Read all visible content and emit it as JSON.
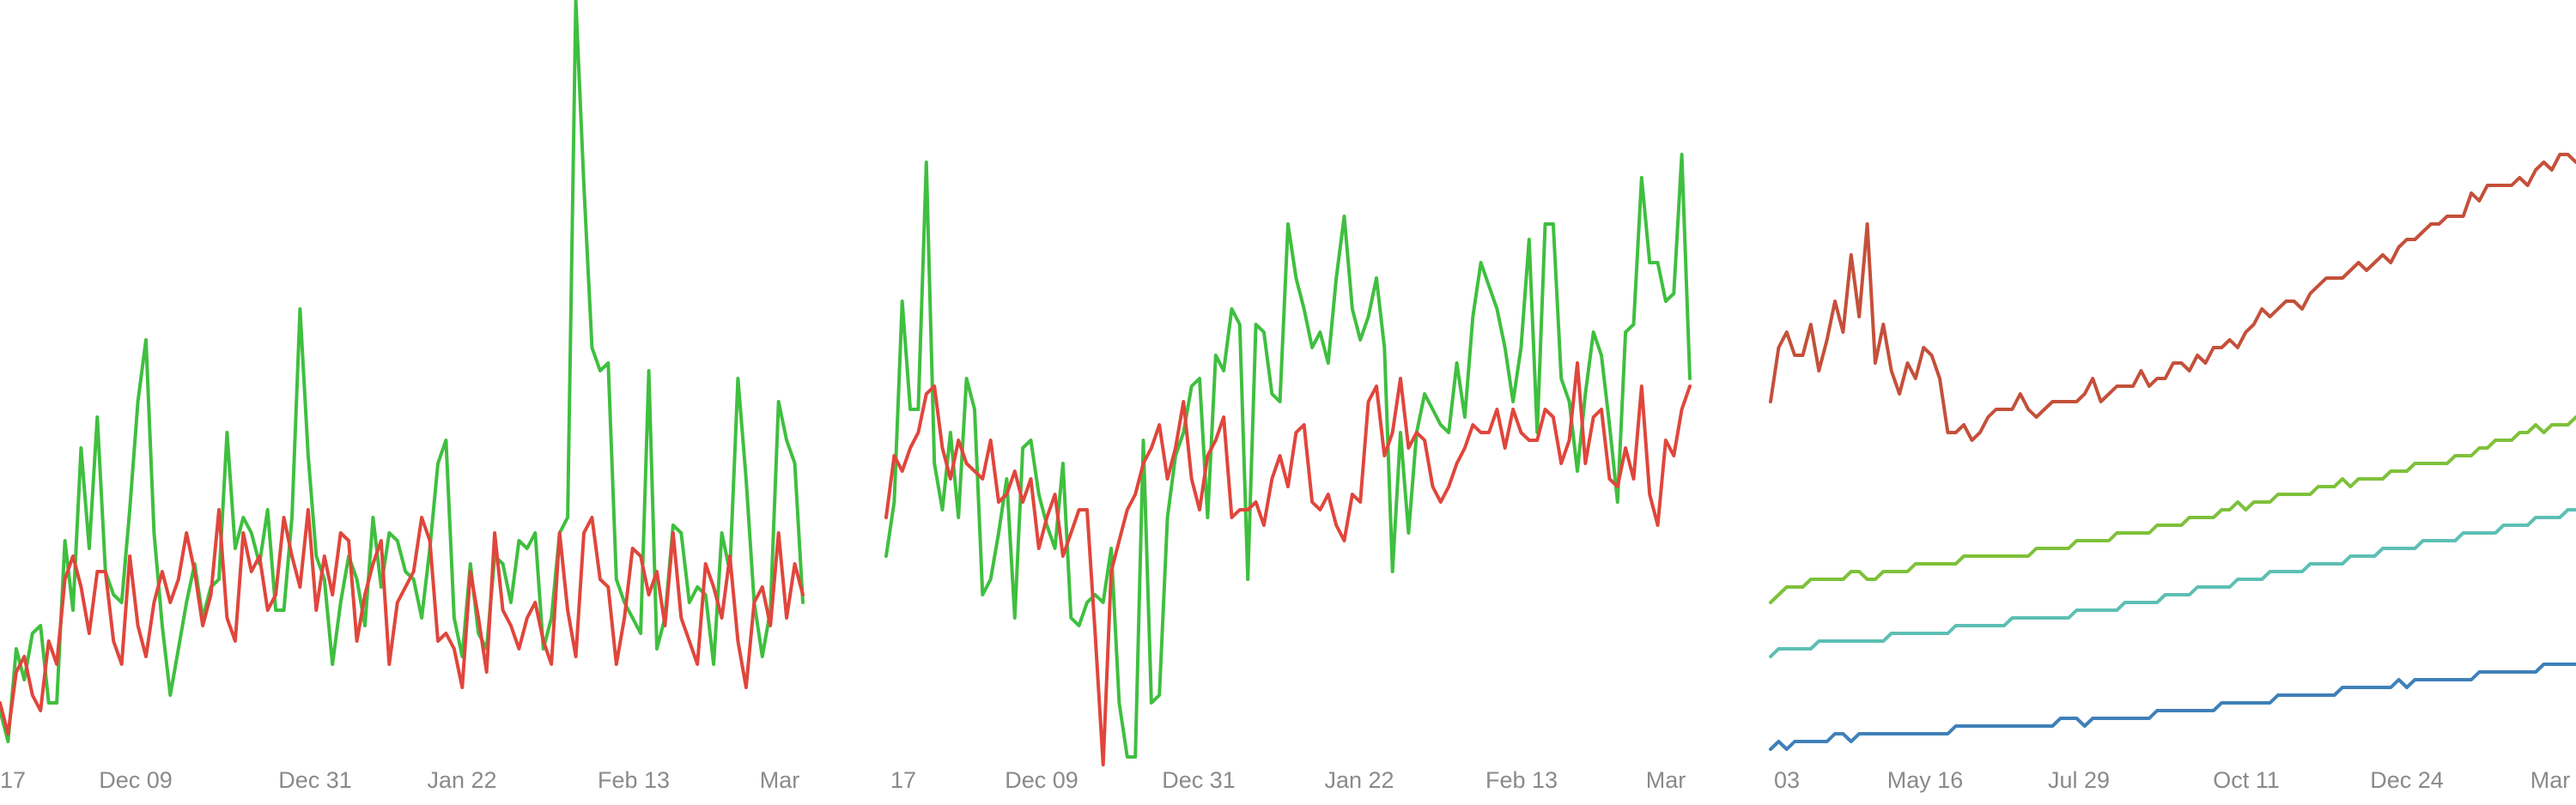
{
  "chart_data": [
    {
      "type": "line",
      "x_tick_labels": [
        "17",
        "Dec 09",
        "Dec 31",
        "Jan 22",
        "Feb 13",
        "Mar"
      ],
      "ylim": [
        0,
        100
      ],
      "grid": false,
      "legend": "none",
      "series": [
        {
          "color": "#3fbf3f",
          "values": [
            8,
            4,
            16,
            12,
            18,
            19,
            9,
            9,
            30,
            21,
            42,
            29,
            46,
            26,
            23,
            22,
            34,
            48,
            56,
            31,
            19,
            10,
            16,
            22,
            27,
            20,
            24,
            25,
            44,
            29,
            33,
            31,
            27,
            34,
            21,
            21,
            33,
            60,
            41,
            28,
            25,
            14,
            22,
            28,
            25,
            19,
            33,
            24,
            31,
            30,
            26,
            25,
            20,
            29,
            40,
            43,
            20,
            15,
            27,
            18,
            16,
            28,
            27,
            22,
            30,
            29,
            31,
            16,
            20,
            31,
            33,
            100,
            76,
            55,
            52,
            53,
            25,
            22,
            20,
            18,
            52,
            16,
            20,
            32,
            31,
            22,
            24,
            23,
            14,
            31,
            26,
            51,
            38,
            22,
            15,
            21,
            48,
            43,
            40,
            22
          ]
        },
        {
          "color": "#e0463c",
          "values": [
            9,
            5,
            13,
            15,
            10,
            8,
            17,
            14,
            25,
            28,
            24,
            18,
            26,
            26,
            17,
            14,
            28,
            19,
            15,
            22,
            26,
            22,
            25,
            31,
            26,
            19,
            23,
            34,
            20,
            17,
            31,
            26,
            28,
            21,
            23,
            33,
            28,
            24,
            34,
            21,
            28,
            23,
            31,
            30,
            17,
            23,
            27,
            30,
            14,
            22,
            24,
            26,
            33,
            30,
            17,
            18,
            16,
            11,
            26,
            20,
            13,
            31,
            21,
            19,
            16,
            20,
            22,
            17,
            14,
            31,
            21,
            15,
            31,
            33,
            25,
            24,
            14,
            20,
            29,
            28,
            23,
            26,
            19,
            31,
            20,
            17,
            14,
            27,
            24,
            20,
            28,
            17,
            11,
            22,
            24,
            19,
            31,
            20,
            27,
            23
          ]
        }
      ]
    },
    {
      "type": "line",
      "x_tick_labels": [
        "17",
        "Dec 09",
        "Dec 31",
        "Jan 22",
        "Feb 13",
        "Mar"
      ],
      "ylim": [
        0,
        100
      ],
      "grid": false,
      "legend": "none",
      "series": [
        {
          "color": "#3fbf3f",
          "values": [
            28,
            35,
            61,
            47,
            47,
            79,
            40,
            34,
            44,
            33,
            51,
            47,
            23,
            25,
            31,
            38,
            20,
            42,
            43,
            36,
            32,
            29,
            40,
            20,
            19,
            22,
            23,
            22,
            29,
            9,
            2,
            2,
            43,
            9,
            10,
            33,
            41,
            44,
            50,
            51,
            33,
            54,
            52,
            60,
            58,
            25,
            58,
            57,
            49,
            48,
            71,
            64,
            60,
            55,
            57,
            53,
            64,
            72,
            60,
            56,
            59,
            64,
            55,
            26,
            44,
            31,
            44,
            49,
            47,
            45,
            44,
            53,
            46,
            59,
            66,
            63,
            60,
            55,
            48,
            55,
            69,
            44,
            71,
            71,
            51,
            48,
            39,
            49,
            57,
            54,
            45,
            35,
            57,
            58,
            77,
            66,
            66,
            61,
            62,
            80,
            51
          ]
        },
        {
          "color": "#e0463c",
          "values": [
            33,
            41,
            39,
            42,
            44,
            49,
            50,
            42,
            38,
            43,
            40,
            39,
            38,
            43,
            35,
            36,
            39,
            35,
            38,
            29,
            33,
            36,
            28,
            31,
            34,
            34,
            18,
            1,
            26,
            30,
            34,
            36,
            40,
            42,
            45,
            38,
            42,
            48,
            38,
            34,
            41,
            43,
            46,
            33,
            34,
            34,
            35,
            32,
            38,
            41,
            37,
            44,
            45,
            35,
            34,
            36,
            32,
            30,
            36,
            35,
            48,
            50,
            41,
            44,
            51,
            42,
            44,
            43,
            37,
            35,
            37,
            40,
            42,
            45,
            44,
            44,
            47,
            42,
            47,
            44,
            43,
            43,
            47,
            46,
            40,
            43,
            53,
            40,
            46,
            47,
            38,
            37,
            42,
            38,
            50,
            36,
            32,
            43,
            41,
            47,
            50
          ]
        }
      ]
    },
    {
      "type": "line",
      "x_tick_labels": [
        "03",
        "May 16",
        "Jul 29",
        "Oct 11",
        "Dec 24",
        "Mar"
      ],
      "ylim": [
        0,
        100
      ],
      "grid": false,
      "legend": "none",
      "series": [
        {
          "color": "#c4503a",
          "values": [
            48,
            55,
            57,
            54,
            54,
            58,
            52,
            56,
            61,
            57,
            67,
            59,
            71,
            53,
            58,
            52,
            49,
            53,
            51,
            55,
            54,
            51,
            44,
            44,
            45,
            43,
            44,
            46,
            47,
            47,
            47,
            49,
            47,
            46,
            47,
            48,
            48,
            48,
            48,
            49,
            51,
            48,
            49,
            50,
            50,
            50,
            52,
            50,
            51,
            51,
            53,
            53,
            52,
            54,
            53,
            55,
            55,
            56,
            55,
            57,
            58,
            60,
            59,
            60,
            61,
            61,
            60,
            62,
            63,
            64,
            64,
            64,
            65,
            66,
            65,
            66,
            67,
            66,
            68,
            69,
            69,
            70,
            71,
            71,
            72,
            72,
            72,
            75,
            74,
            76,
            76,
            76,
            76,
            77,
            76,
            78,
            79,
            78,
            80,
            80,
            79
          ]
        },
        {
          "color": "#7ec13a",
          "values": [
            22,
            23,
            24,
            24,
            24,
            25,
            25,
            25,
            25,
            25,
            26,
            26,
            25,
            25,
            26,
            26,
            26,
            26,
            27,
            27,
            27,
            27,
            27,
            27,
            28,
            28,
            28,
            28,
            28,
            28,
            28,
            28,
            28,
            29,
            29,
            29,
            29,
            29,
            30,
            30,
            30,
            30,
            30,
            31,
            31,
            31,
            31,
            31,
            32,
            32,
            32,
            32,
            33,
            33,
            33,
            33,
            34,
            34,
            35,
            34,
            35,
            35,
            35,
            36,
            36,
            36,
            36,
            36,
            37,
            37,
            37,
            38,
            37,
            38,
            38,
            38,
            38,
            39,
            39,
            39,
            40,
            40,
            40,
            40,
            40,
            41,
            41,
            41,
            42,
            42,
            43,
            43,
            43,
            44,
            44,
            45,
            44,
            45,
            45,
            45,
            46
          ]
        },
        {
          "color": "#5dbfb4",
          "values": [
            15,
            16,
            16,
            16,
            16,
            16,
            17,
            17,
            17,
            17,
            17,
            17,
            17,
            17,
            17,
            18,
            18,
            18,
            18,
            18,
            18,
            18,
            18,
            19,
            19,
            19,
            19,
            19,
            19,
            19,
            20,
            20,
            20,
            20,
            20,
            20,
            20,
            20,
            21,
            21,
            21,
            21,
            21,
            21,
            22,
            22,
            22,
            22,
            22,
            23,
            23,
            23,
            23,
            24,
            24,
            24,
            24,
            24,
            25,
            25,
            25,
            25,
            26,
            26,
            26,
            26,
            26,
            27,
            27,
            27,
            27,
            27,
            28,
            28,
            28,
            28,
            29,
            29,
            29,
            29,
            29,
            30,
            30,
            30,
            30,
            30,
            31,
            31,
            31,
            31,
            31,
            32,
            32,
            32,
            32,
            33,
            33,
            33,
            33,
            34,
            34
          ]
        },
        {
          "color": "#3f80b8",
          "values": [
            3,
            4,
            3,
            4,
            4,
            4,
            4,
            4,
            5,
            5,
            4,
            5,
            5,
            5,
            5,
            5,
            5,
            5,
            5,
            5,
            5,
            5,
            5,
            6,
            6,
            6,
            6,
            6,
            6,
            6,
            6,
            6,
            6,
            6,
            6,
            6,
            7,
            7,
            7,
            6,
            7,
            7,
            7,
            7,
            7,
            7,
            7,
            7,
            8,
            8,
            8,
            8,
            8,
            8,
            8,
            8,
            9,
            9,
            9,
            9,
            9,
            9,
            9,
            10,
            10,
            10,
            10,
            10,
            10,
            10,
            10,
            11,
            11,
            11,
            11,
            11,
            11,
            11,
            12,
            11,
            12,
            12,
            12,
            12,
            12,
            12,
            12,
            12,
            13,
            13,
            13,
            13,
            13,
            13,
            13,
            13,
            14,
            14,
            14,
            14,
            14
          ]
        }
      ]
    }
  ]
}
